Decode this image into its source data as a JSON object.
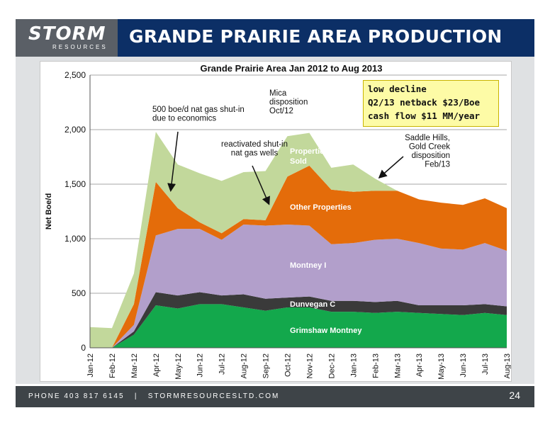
{
  "header": {
    "logo_text": "STORM",
    "logo_subtext": "RESOURCES",
    "title": "GRANDE PRAIRIE AREA PRODUCTION"
  },
  "footer": {
    "phone": "PHONE 403 817 6145",
    "website": "STORMRESOURCESLTD.COM",
    "page_number": "24"
  },
  "colors": {
    "header_bg": "#0c2f66",
    "grimshaw": "#13a84c",
    "dunvegan": "#3a3a3a",
    "montney_i": "#b29fcb",
    "other": "#e46c0a",
    "sold": "#c2d89b",
    "callout_bg": "#fdfba6"
  },
  "annotations": {
    "shut_in": [
      "500 boe/d nat gas shut-in",
      "due to economics"
    ],
    "reactivated": [
      "reactivated shut-in",
      "nat gas wells"
    ],
    "mica": [
      "Mica",
      "disposition",
      "Oct/12"
    ],
    "saddle": [
      "Saddle Hills,",
      "Gold Creek",
      "disposition",
      "Feb/13"
    ]
  },
  "callout": {
    "lines": [
      "low decline",
      "Q2/13 netback $23/Boe",
      "cash flow $11 MM/year"
    ]
  },
  "chart_data": {
    "type": "area",
    "title": "Grande Prairie Area Jan 2012 to Aug 2013",
    "xlabel": "",
    "ylabel": "Net Boe/d",
    "ylim": [
      0,
      2500
    ],
    "yticks": [
      0,
      500,
      1000,
      1500,
      2000,
      2500
    ],
    "ytick_labels": [
      "0",
      "500",
      "1,000",
      "1,500",
      "2,000",
      "2,500"
    ],
    "categories": [
      "Jan-12",
      "Feb-12",
      "Mar-12",
      "Apr-12",
      "May-12",
      "Jun-12",
      "Jul-12",
      "Aug-12",
      "Sep-12",
      "Oct-12",
      "Nov-12",
      "Dec-12",
      "Jan-13",
      "Feb-13",
      "Mar-13",
      "Apr-13",
      "May-13",
      "Jun-13",
      "Jul-13",
      "Aug-13"
    ],
    "stacked": true,
    "series": [
      {
        "name": "Grimshaw Montney",
        "color_key": "grimshaw",
        "values": [
          0,
          0,
          120,
          390,
          360,
          400,
          400,
          370,
          340,
          370,
          370,
          330,
          330,
          320,
          330,
          320,
          310,
          300,
          320,
          300
        ]
      },
      {
        "name": "Dunvegan C",
        "color_key": "dunvegan",
        "values": [
          0,
          0,
          30,
          120,
          120,
          110,
          80,
          120,
          110,
          90,
          100,
          100,
          100,
          100,
          100,
          70,
          80,
          90,
          80,
          80
        ]
      },
      {
        "name": "Montney I",
        "color_key": "montney_i",
        "values": [
          0,
          0,
          60,
          520,
          610,
          580,
          510,
          640,
          670,
          670,
          650,
          520,
          530,
          570,
          570,
          570,
          520,
          510,
          560,
          510
        ]
      },
      {
        "name": "Other Properties",
        "color_key": "other",
        "values": [
          0,
          0,
          190,
          490,
          190,
          60,
          60,
          50,
          50,
          440,
          550,
          500,
          470,
          450,
          440,
          400,
          420,
          410,
          410,
          390
        ]
      },
      {
        "name": "Properties Sold",
        "color_key": "sold",
        "values": [
          190,
          180,
          280,
          460,
          400,
          450,
          480,
          430,
          450,
          370,
          300,
          200,
          250,
          110,
          0,
          0,
          0,
          0,
          0,
          0
        ]
      }
    ]
  }
}
